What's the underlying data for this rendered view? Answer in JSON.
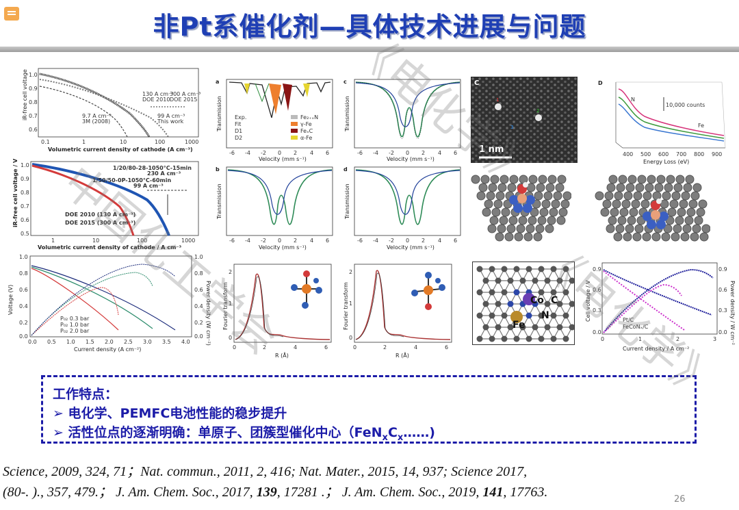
{
  "header": {
    "title": "非Pt系催化剂—具体技术进展与问题"
  },
  "panels": {
    "p1": {
      "ylabel": "iR-free cell voltage",
      "xlabel": "Volumetric current density of cathode (A cm⁻³)",
      "yticks": [
        "1.0",
        "0.9",
        "0.8",
        "0.7",
        "0.6"
      ],
      "xticks": [
        "0.1",
        "1",
        "10",
        "100",
        "1000"
      ],
      "ann1": "130 A cm⁻³",
      "ann2": "300 A cm⁻³",
      "ann3": "DOE 2010",
      "ann4": "DOE 2015",
      "ann5": "9.7 A cm⁻³",
      "ann6": "3M (2008)",
      "ann7": "99 A cm⁻³",
      "ann8": "This work"
    },
    "p2": {
      "ylabel": "iR-free cell voltage / V",
      "xlabel": "Volumetric current density of cathode / A cm⁻³",
      "yticks": [
        "1.0",
        "0.9",
        "0.8",
        "0.7",
        "0.6",
        "0.5"
      ],
      "xticks": [
        "1",
        "10",
        "100",
        "1000"
      ],
      "ann1": "1/20/80-28-1050°C-15min",
      "ann2": "230 A cm⁻³",
      "ann3": "1/50/50-0P-1050°C-60min",
      "ann4": "99 A cm⁻³",
      "ann5": "DOE 2010 (130 A cm⁻³)",
      "ann6": "DOE 2015 (300 A cm⁻³)"
    },
    "p3": {
      "ylabel": "Voltage (V)",
      "y2label": "Power density (W cm⁻²)",
      "xlabel": "Current density (A cm⁻²)",
      "yticks": [
        "1.0",
        "0.8",
        "0.6",
        "0.4",
        "0.2",
        "0.0"
      ],
      "y2ticks": [
        "1.0",
        "0.8",
        "0.6",
        "0.4",
        "0.2",
        "0.0"
      ],
      "xticks": [
        "0.0",
        "0.5",
        "1.0",
        "1.5",
        "2.0",
        "2.5",
        "3.0",
        "3.5",
        "4.0"
      ],
      "legend": [
        "P₀₂ 0.3 bar",
        "P₀₂ 1.0 bar",
        "P₀₂ 2.0 bar"
      ]
    },
    "pa": {
      "letter": "a",
      "ylabel": "Transmission",
      "xlabel": "Velocity (mm s⁻¹)",
      "xticks": [
        "-6",
        "-4",
        "-2",
        "0",
        "2",
        "4",
        "6"
      ],
      "legend_left": [
        "Exp.",
        "Fit",
        "D1",
        "D2"
      ],
      "legend_right": [
        "Fe₂₊ₓN",
        "γ-Fe",
        "FeₓC",
        "α-Fe"
      ]
    },
    "pc": {
      "letter": "c",
      "ylabel": "Transmission",
      "xlabel": "Velocity (mm s⁻¹)",
      "xticks": [
        "-6",
        "-4",
        "-2",
        "0",
        "2",
        "4",
        "6"
      ]
    },
    "pb": {
      "letter": "b",
      "ylabel": "Transmission",
      "xlabel": "Velocity (mm s⁻¹)",
      "xticks": [
        "-6",
        "-4",
        "-2",
        "0",
        "2",
        "4",
        "6"
      ]
    },
    "pd": {
      "letter": "d",
      "ylabel": "Transmission",
      "xlabel": "Velocity (mm s⁻¹)",
      "xticks": [
        "-6",
        "-4",
        "-2",
        "0",
        "2",
        "4",
        "6"
      ]
    },
    "pe": {
      "ylabel": "Fourier transform",
      "xlabel": "R (Å)",
      "xticks": [
        "0",
        "2",
        "4",
        "6"
      ],
      "yticks": [
        "2",
        "1",
        "0"
      ]
    },
    "pf": {
      "ylabel": "Fourier transform",
      "xlabel": "R (Å)",
      "xticks": [
        "0",
        "2",
        "4",
        "6"
      ],
      "yticks": [
        "2",
        "1",
        "0"
      ]
    },
    "stem": {
      "letter": "C",
      "scale": "1 nm",
      "m1": "1",
      "m2": "2",
      "m3": "3"
    },
    "eels": {
      "letter": "D",
      "xlabel": "Energy Loss (eV)",
      "n_label": "N",
      "fe_label": "Fe",
      "counts": "10,000 counts",
      "xticks": [
        "400",
        "500",
        "600",
        "700",
        "800",
        "900"
      ]
    },
    "struct": {
      "co": "Co",
      "fe": "Fe",
      "c": "C",
      "n": "N"
    },
    "pol": {
      "ylabel": "Cell voltage / V",
      "y2label": "Power density / W cm⁻²",
      "xlabel": "Current density / A cm⁻²",
      "yticks": [
        "0.9",
        "0.6",
        "0.3",
        "0.0"
      ],
      "y2ticks": [
        "0.9",
        "0.6",
        "0.3",
        "0.0"
      ],
      "xticks": [
        "0",
        "1",
        "2",
        "3"
      ],
      "legend": [
        "Pt/C",
        "FeCoNₓ/C"
      ]
    }
  },
  "summary": {
    "heading": "工作特点：",
    "point1": "➢ 电化学、PEMFC电池性能的稳步提升",
    "point2a": "➢ 活性位点的逐渐明确：单原子、团簇型催化中心（FeN",
    "point2_sub1": "x",
    "point2b": "C",
    "point2_sub2": "x",
    "point2c": "……)"
  },
  "references": {
    "line1": "Science, 2009, 324, 71；Nat. commun., 2011, 2, 416;  Nat. Mater., 2015, 14, 937; Science 2017,",
    "line2a": "(80-. ).,  357, 479.；  J. Am. Chem. Soc., 2017, ",
    "line2b": "139",
    "line2c": ", 17281 .；  J. Am. Chem. Soc., 2019, ",
    "line2d": "141",
    "line2e": ", 17763."
  },
  "page_number": "26",
  "watermark": {
    "text1": "《电化学》",
    "text2": "中国化工学会",
    "text3": "《电化学》"
  }
}
